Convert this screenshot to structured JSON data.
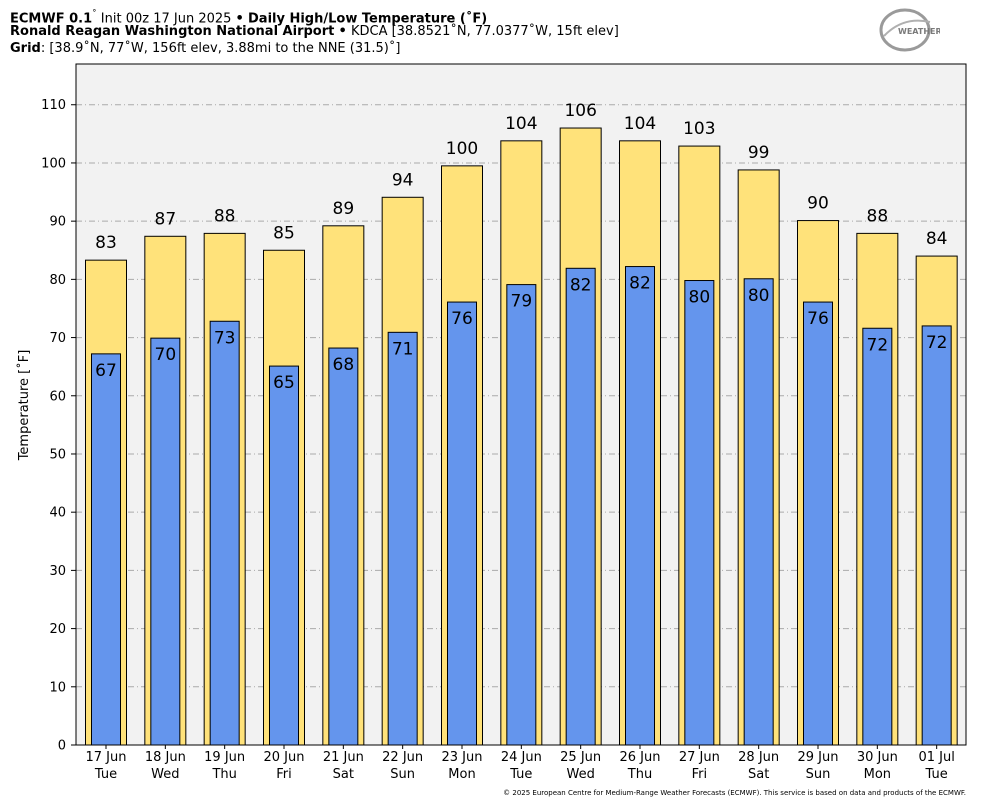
{
  "header": {
    "line1_model": "ECMWF 0.1",
    "line1_init": "Init 00z 17 Jun 2025",
    "line1_product": "Daily High/Low Temperature (˚F)",
    "line2_station": "Ronald Reagan Washington National Airport",
    "line2_details": "KDCA [38.8521˚N, 77.0377˚W, 15ft elev]",
    "line3_label": "Grid",
    "line3_details": ": [38.9˚N, 77˚W, 156ft elev, 3.88mi to the NNE (31.5)˚]",
    "separator": "•",
    "degree": "˚"
  },
  "logo": {
    "text_main": "WEATHERBELL",
    "colors": {
      "ring": "#9a9a9a",
      "text": "#7a7a7a",
      "accent": "#b0b0b0"
    }
  },
  "footer": {
    "copyright": "© 2025 European Centre for Medium-Range Weather Forecasts (ECMWF). This service is based on data and products of the ECMWF."
  },
  "colors": {
    "high_bar": "#ffe27a",
    "low_bar": "#6495ed",
    "plot_bg": "#f2f2f2",
    "grid": "#aaaaaa"
  },
  "chart_data": {
    "type": "bar",
    "ylabel": "Temperature [˚F]",
    "ylim": [
      0,
      117
    ],
    "yticks": [
      0,
      10,
      20,
      30,
      40,
      50,
      60,
      70,
      80,
      90,
      100,
      110
    ],
    "grid": true,
    "categories": [
      {
        "date": "17 Jun",
        "day": "Tue"
      },
      {
        "date": "18 Jun",
        "day": "Wed"
      },
      {
        "date": "19 Jun",
        "day": "Thu"
      },
      {
        "date": "20 Jun",
        "day": "Fri"
      },
      {
        "date": "21 Jun",
        "day": "Sat"
      },
      {
        "date": "22 Jun",
        "day": "Sun"
      },
      {
        "date": "23 Jun",
        "day": "Mon"
      },
      {
        "date": "24 Jun",
        "day": "Tue"
      },
      {
        "date": "25 Jun",
        "day": "Wed"
      },
      {
        "date": "26 Jun",
        "day": "Thu"
      },
      {
        "date": "27 Jun",
        "day": "Fri"
      },
      {
        "date": "28 Jun",
        "day": "Sat"
      },
      {
        "date": "29 Jun",
        "day": "Sun"
      },
      {
        "date": "30 Jun",
        "day": "Mon"
      },
      {
        "date": "01 Jul",
        "day": "Tue"
      }
    ],
    "series": [
      {
        "values": [
          83.3,
          87.4,
          87.9,
          85.0,
          89.2,
          94.1,
          99.5,
          103.8,
          106.0,
          103.8,
          102.9,
          98.8,
          90.1,
          87.9,
          84.0
        ]
      },
      {
        "values": [
          67.2,
          69.9,
          72.8,
          65.1,
          68.2,
          70.9,
          76.1,
          79.1,
          81.9,
          82.2,
          79.8,
          80.1,
          76.1,
          71.6,
          72.0
        ]
      }
    ],
    "high_labels": [
      "83",
      "87",
      "88",
      "85",
      "89",
      "94",
      "100",
      "104",
      "106",
      "104",
      "103",
      "99",
      "90",
      "88",
      "84"
    ],
    "low_labels": [
      "67",
      "70",
      "73",
      "65",
      "68",
      "71",
      "76",
      "79",
      "82",
      "82",
      "80",
      "80",
      "76",
      "72",
      "72"
    ]
  }
}
